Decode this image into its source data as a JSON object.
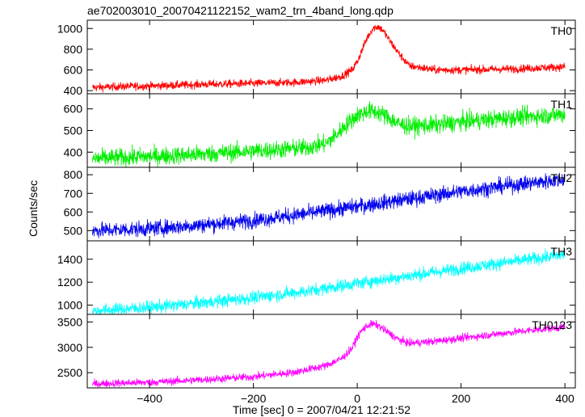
{
  "chart_data": {
    "type": "line",
    "title": "ae702003010_20070421122152_wam2_trn_4band_long.qdp",
    "xlabel": "Time [sec] 0 = 2007/04/21 12:21:52",
    "ylabel": "Counts/sec",
    "xlim": [
      -520,
      420
    ],
    "x_ticks": [
      -400,
      -200,
      0,
      200,
      400
    ],
    "x_tick_labels": [
      "−400",
      "−200",
      "0",
      "200",
      "400"
    ],
    "panels": [
      {
        "name": "TH0",
        "color": "#ff0000",
        "ylim": [
          370,
          1080
        ],
        "y_ticks": [
          400,
          600,
          800,
          1000
        ],
        "noise": 28,
        "x": [
          -510,
          -450,
          -400,
          -300,
          -200,
          -120,
          -60,
          -30,
          -10,
          0,
          10,
          20,
          30,
          40,
          50,
          60,
          80,
          100,
          150,
          200,
          300,
          400
        ],
        "y": [
          430,
          440,
          445,
          460,
          470,
          480,
          500,
          540,
          600,
          680,
          800,
          920,
          1000,
          1020,
          980,
          900,
          760,
          640,
          600,
          600,
          610,
          630
        ]
      },
      {
        "name": "TH1",
        "color": "#00ee00",
        "ylim": [
          330,
          670
        ],
        "y_ticks": [
          400,
          500,
          600
        ],
        "noise": 30,
        "x": [
          -510,
          -400,
          -300,
          -200,
          -100,
          -60,
          -40,
          -20,
          0,
          20,
          40,
          60,
          80,
          100,
          150,
          200,
          300,
          400
        ],
        "y": [
          370,
          380,
          390,
          405,
          420,
          440,
          480,
          530,
          570,
          590,
          585,
          560,
          530,
          520,
          525,
          540,
          560,
          575
        ]
      },
      {
        "name": "TH2",
        "color": "#0000ee",
        "ylim": [
          445,
          840
        ],
        "y_ticks": [
          500,
          600,
          700,
          800
        ],
        "noise": 30,
        "x": [
          -510,
          -400,
          -300,
          -200,
          -100,
          0,
          100,
          200,
          300,
          400
        ],
        "y": [
          500,
          510,
          530,
          555,
          590,
          630,
          670,
          710,
          745,
          775
        ]
      },
      {
        "name": "TH3",
        "color": "#00ffff",
        "ylim": [
          920,
          1560
        ],
        "y_ticks": [
          1000,
          1200,
          1400
        ],
        "noise": 40,
        "x": [
          -510,
          -400,
          -300,
          -200,
          -100,
          0,
          100,
          200,
          300,
          400
        ],
        "y": [
          950,
          980,
          1020,
          1065,
          1120,
          1190,
          1255,
          1320,
          1380,
          1440
        ]
      },
      {
        "name": "TH0123",
        "color": "#ff00ff",
        "ylim": [
          2200,
          3650
        ],
        "y_ticks": [
          2500,
          3000,
          3500
        ],
        "noise": 55,
        "x": [
          -510,
          -400,
          -300,
          -200,
          -120,
          -60,
          -30,
          -10,
          0,
          10,
          20,
          30,
          40,
          60,
          80,
          100,
          150,
          200,
          300,
          400
        ],
        "y": [
          2280,
          2310,
          2360,
          2420,
          2510,
          2640,
          2780,
          2980,
          3200,
          3350,
          3430,
          3460,
          3430,
          3290,
          3150,
          3080,
          3120,
          3180,
          3300,
          3400
        ]
      }
    ]
  }
}
